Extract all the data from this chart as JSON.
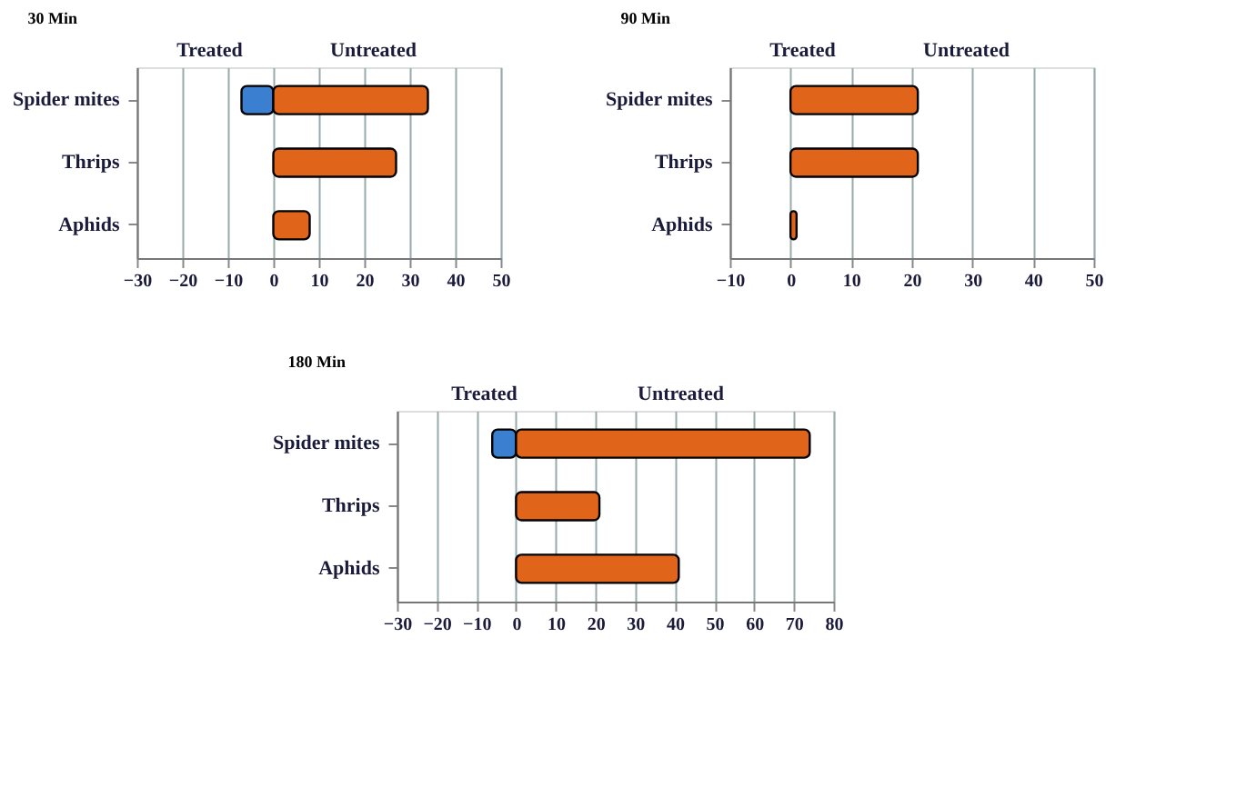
{
  "chart_data": [
    {
      "type": "bar",
      "title": "30 Min",
      "orientation": "horizontal",
      "grid": "x",
      "categories": [
        "Spider mites",
        "Thrips",
        "Aphids"
      ],
      "series": [
        {
          "color": "#3a7fd0",
          "values": [
            -7,
            null,
            null
          ]
        },
        {
          "color": "#e0641a",
          "values": [
            34,
            27,
            8
          ]
        }
      ],
      "xlim": [
        -30,
        50
      ],
      "xticks": [
        -30,
        -20,
        -10,
        0,
        10,
        20,
        30,
        40,
        50
      ],
      "annotations": [
        "Treated",
        "Untreated"
      ]
    },
    {
      "type": "bar",
      "title": "90 Min",
      "orientation": "horizontal",
      "grid": "x",
      "categories": [
        "Spider mites",
        "Thrips",
        "Aphids"
      ],
      "series": [
        {
          "color": "#e0641a",
          "values": [
            21,
            21,
            1
          ]
        }
      ],
      "xlim": [
        -10,
        50
      ],
      "xticks": [
        -10,
        0,
        10,
        20,
        30,
        40,
        50
      ],
      "annotations": [
        "Treated",
        "Untreated"
      ]
    },
    {
      "type": "bar",
      "title": "180 Min",
      "orientation": "horizontal",
      "grid": "x",
      "categories": [
        "Spider mites",
        "Thrips",
        "Aphids"
      ],
      "series": [
        {
          "color": "#3a7fd0",
          "values": [
            -6,
            null,
            null
          ]
        },
        {
          "color": "#e0641a",
          "values": [
            74,
            21,
            41
          ]
        }
      ],
      "xlim": [
        -30,
        80
      ],
      "xticks": [
        -30,
        -20,
        -10,
        0,
        10,
        20,
        30,
        40,
        50,
        60,
        70,
        80
      ],
      "annotations": [
        "Treated",
        "Untreated"
      ]
    }
  ]
}
